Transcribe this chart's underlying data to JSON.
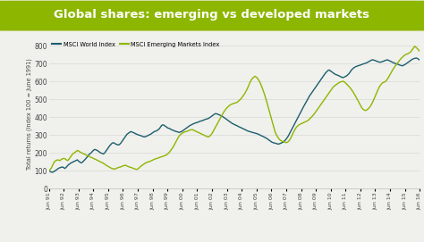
{
  "title": "Global shares: emerging vs developed markets",
  "title_bg_color": "#8db600",
  "title_text_color": "#ffffff",
  "ylabel": "Total returns (index 100 = June 1991)",
  "bg_color": "#f0f0ec",
  "plot_bg_color": "#f0f0ec",
  "world_color": "#1b5e6e",
  "em_color": "#8db600",
  "yticks": [
    0,
    100,
    200,
    300,
    400,
    500,
    600,
    700,
    800
  ],
  "ylim": [
    0,
    840
  ],
  "legend_world": "MSCI World Index",
  "legend_em": "MSCI Emerging Markets Index",
  "x_labels": [
    "Jun 91",
    "Jun 92",
    "Jun 93",
    "Jun 94",
    "Jun 95",
    "Jun 96",
    "Jun 97",
    "Jun 98",
    "Jun 99",
    "Jun 00",
    "Jun 01",
    "Jun 02",
    "Jun 03",
    "Jun 04",
    "Jun 05",
    "Jun 06",
    "Jun 07",
    "Jun 08",
    "Jun 09",
    "Jun 10",
    "Jun 11",
    "Jun 12",
    "Jun 13",
    "Jun 14",
    "Jun 15",
    "Jun 16"
  ],
  "world_data": [
    100,
    97,
    94,
    92,
    96,
    100,
    105,
    110,
    115,
    118,
    120,
    122,
    118,
    114,
    120,
    128,
    135,
    140,
    145,
    148,
    152,
    155,
    158,
    162,
    155,
    150,
    145,
    148,
    155,
    162,
    170,
    178,
    188,
    195,
    200,
    208,
    215,
    220,
    218,
    215,
    210,
    205,
    200,
    198,
    195,
    200,
    210,
    220,
    230,
    240,
    248,
    255,
    258,
    255,
    250,
    248,
    245,
    248,
    255,
    265,
    275,
    285,
    295,
    305,
    310,
    315,
    320,
    318,
    315,
    312,
    308,
    305,
    302,
    300,
    298,
    295,
    292,
    290,
    292,
    295,
    298,
    302,
    305,
    310,
    315,
    320,
    322,
    325,
    330,
    335,
    345,
    355,
    358,
    355,
    350,
    345,
    340,
    338,
    335,
    330,
    328,
    325,
    322,
    320,
    318,
    315,
    318,
    320,
    325,
    330,
    335,
    340,
    345,
    350,
    355,
    358,
    362,
    365,
    368,
    370,
    372,
    375,
    378,
    380,
    382,
    385,
    388,
    390,
    392,
    395,
    400,
    405,
    410,
    415,
    420,
    420,
    418,
    415,
    412,
    408,
    405,
    400,
    395,
    390,
    385,
    380,
    375,
    370,
    365,
    362,
    358,
    355,
    352,
    348,
    345,
    342,
    338,
    335,
    332,
    328,
    325,
    322,
    320,
    318,
    316,
    314,
    312,
    310,
    308,
    305,
    302,
    298,
    295,
    292,
    288,
    285,
    280,
    275,
    270,
    265,
    260,
    258,
    256,
    254,
    252,
    250,
    252,
    255,
    258,
    262,
    268,
    275,
    285,
    295,
    308,
    320,
    335,
    348,
    362,
    375,
    388,
    400,
    415,
    428,
    442,
    455,
    468,
    480,
    492,
    505,
    518,
    528,
    538,
    548,
    558,
    568,
    578,
    588,
    598,
    608,
    618,
    628,
    638,
    648,
    655,
    662,
    665,
    660,
    655,
    650,
    645,
    640,
    638,
    635,
    632,
    628,
    625,
    622,
    625,
    628,
    632,
    638,
    645,
    655,
    665,
    672,
    678,
    682,
    685,
    688,
    690,
    692,
    695,
    698,
    700,
    702,
    705,
    708,
    712,
    716,
    720,
    722,
    720,
    718,
    715,
    712,
    710,
    708,
    710,
    712,
    715,
    718,
    720,
    722,
    718,
    715,
    712,
    708,
    705,
    702,
    700,
    698,
    695,
    692,
    690,
    688,
    692,
    695,
    700,
    705,
    710,
    715,
    720,
    725,
    728,
    730,
    732,
    730,
    725,
    720
  ],
  "em_data": [
    100,
    108,
    115,
    130,
    145,
    155,
    158,
    162,
    160,
    158,
    165,
    168,
    170,
    168,
    162,
    158,
    165,
    175,
    185,
    195,
    200,
    205,
    210,
    215,
    210,
    205,
    202,
    198,
    195,
    192,
    188,
    185,
    182,
    178,
    175,
    172,
    168,
    165,
    162,
    158,
    155,
    150,
    148,
    145,
    140,
    135,
    130,
    126,
    122,
    118,
    114,
    112,
    110,
    112,
    115,
    118,
    120,
    122,
    125,
    128,
    130,
    132,
    128,
    125,
    122,
    120,
    118,
    115,
    112,
    110,
    108,
    112,
    118,
    125,
    130,
    135,
    140,
    145,
    148,
    150,
    152,
    155,
    158,
    162,
    165,
    168,
    170,
    172,
    175,
    178,
    180,
    182,
    185,
    188,
    192,
    198,
    205,
    215,
    225,
    235,
    248,
    262,
    275,
    288,
    298,
    305,
    310,
    315,
    318,
    320,
    322,
    325,
    328,
    330,
    332,
    328,
    325,
    322,
    318,
    315,
    312,
    308,
    305,
    302,
    298,
    295,
    292,
    290,
    295,
    302,
    312,
    325,
    338,
    352,
    365,
    378,
    390,
    402,
    415,
    428,
    438,
    448,
    455,
    462,
    468,
    472,
    475,
    478,
    480,
    482,
    485,
    492,
    498,
    505,
    515,
    525,
    535,
    548,
    562,
    578,
    595,
    608,
    618,
    625,
    630,
    625,
    618,
    608,
    595,
    578,
    560,
    540,
    518,
    495,
    470,
    445,
    420,
    395,
    368,
    342,
    318,
    302,
    290,
    280,
    272,
    268,
    265,
    262,
    260,
    258,
    262,
    268,
    278,
    292,
    308,
    322,
    335,
    345,
    352,
    358,
    362,
    365,
    368,
    372,
    375,
    378,
    382,
    388,
    395,
    402,
    410,
    418,
    428,
    438,
    448,
    458,
    468,
    478,
    488,
    498,
    508,
    518,
    528,
    538,
    548,
    558,
    568,
    575,
    580,
    585,
    590,
    595,
    598,
    600,
    602,
    598,
    592,
    585,
    578,
    570,
    562,
    552,
    542,
    530,
    518,
    505,
    492,
    478,
    465,
    452,
    445,
    440,
    438,
    442,
    448,
    455,
    465,
    478,
    492,
    508,
    525,
    542,
    558,
    572,
    582,
    590,
    595,
    598,
    602,
    612,
    622,
    635,
    648,
    660,
    672,
    682,
    692,
    700,
    710,
    720,
    728,
    735,
    742,
    748,
    752,
    755,
    758,
    762,
    768,
    778,
    788,
    798,
    792,
    785,
    778,
    768
  ]
}
